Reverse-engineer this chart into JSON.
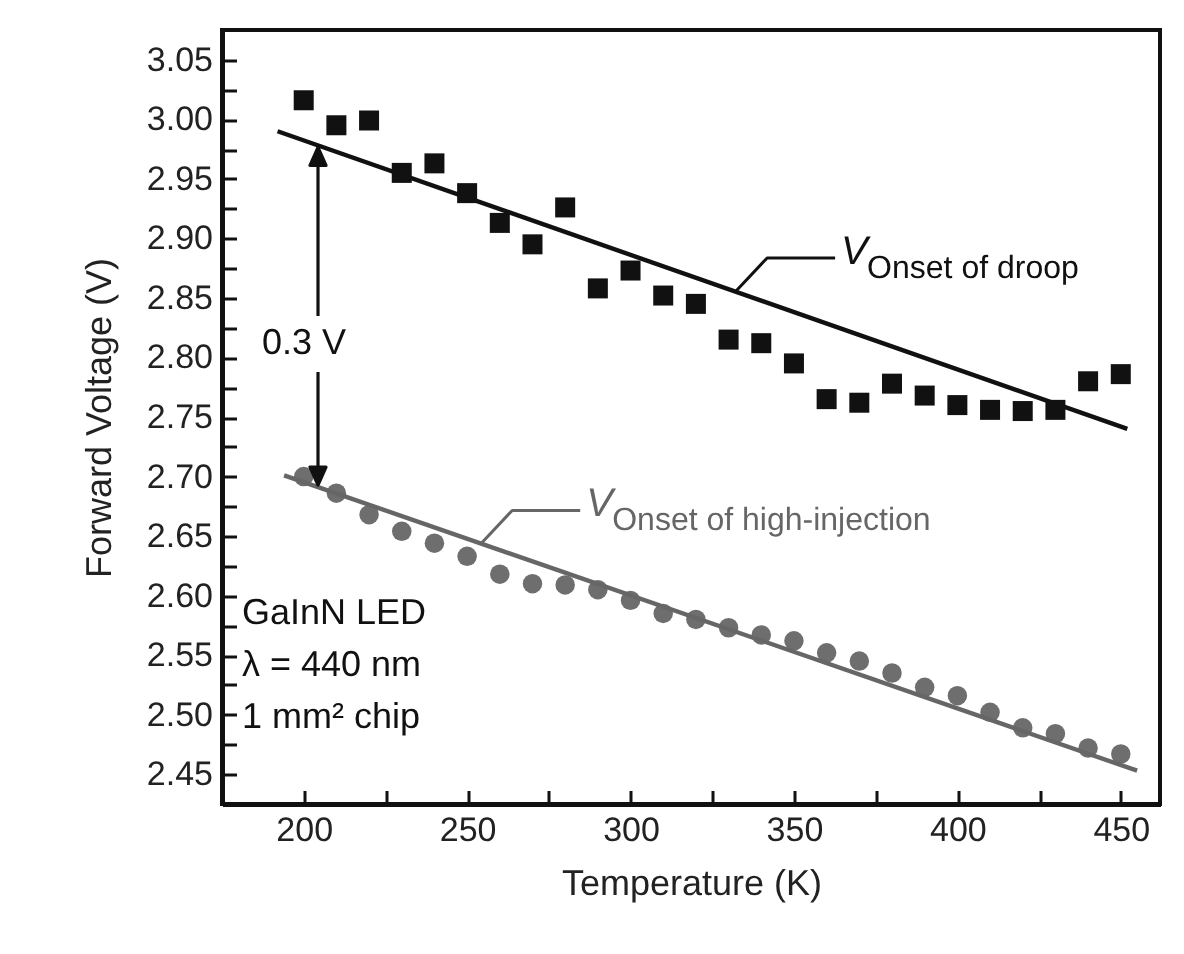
{
  "chart_data": {
    "type": "scatter",
    "xlabel": "Temperature   (K)",
    "ylabel": "Forward Voltage   (V)",
    "xlim": [
      175,
      462
    ],
    "ylim": [
      2.425,
      3.075
    ],
    "xticks": [
      200,
      {
        "value": 225,
        "label": null
      },
      250,
      {
        "value": 275,
        "label": null
      },
      300,
      {
        "value": 325,
        "label": null
      },
      350,
      {
        "value": 375,
        "label": null
      },
      400,
      {
        "value": 425,
        "label": null
      },
      450
    ],
    "yticks": [
      {
        "value": 2.45,
        "label": "2.45"
      },
      {
        "value": 2.475,
        "label": null
      },
      {
        "value": 2.5,
        "label": "2.50"
      },
      {
        "value": 2.525,
        "label": null
      },
      {
        "value": 2.55,
        "label": "2.55"
      },
      {
        "value": 2.575,
        "label": null
      },
      {
        "value": 2.6,
        "label": "2.60"
      },
      {
        "value": 2.625,
        "label": null
      },
      {
        "value": 2.65,
        "label": "2.65"
      },
      {
        "value": 2.675,
        "label": null
      },
      {
        "value": 2.7,
        "label": "2.70"
      },
      {
        "value": 2.725,
        "label": null
      },
      {
        "value": 2.75,
        "label": "2.75"
      },
      {
        "value": 2.775,
        "label": null
      },
      {
        "value": 2.8,
        "label": "2.80"
      },
      {
        "value": 2.825,
        "label": null
      },
      {
        "value": 2.85,
        "label": "2.85"
      },
      {
        "value": 2.875,
        "label": null
      },
      {
        "value": 2.9,
        "label": "2.90"
      },
      {
        "value": 2.925,
        "label": null
      },
      {
        "value": 2.95,
        "label": "2.95"
      },
      {
        "value": 2.975,
        "label": null
      },
      {
        "value": 3.0,
        "label": "3.00"
      },
      {
        "value": 3.025,
        "label": null
      },
      {
        "value": 3.05,
        "label": "3.05"
      }
    ],
    "x": [
      200,
      210,
      220,
      230,
      240,
      250,
      260,
      270,
      280,
      290,
      300,
      310,
      320,
      330,
      340,
      350,
      360,
      370,
      380,
      390,
      400,
      410,
      420,
      430,
      440,
      450
    ],
    "series": [
      {
        "marker": "square",
        "color": "#111111",
        "values": [
          3.016,
          2.995,
          2.999,
          2.955,
          2.963,
          2.938,
          2.913,
          2.895,
          2.926,
          2.858,
          2.873,
          2.852,
          2.845,
          2.815,
          2.812,
          2.795,
          2.765,
          2.762,
          2.778,
          2.768,
          2.76,
          2.756,
          2.755,
          2.756,
          2.78,
          2.786
        ]
      },
      {
        "marker": "circle",
        "color": "#6e6e6e",
        "values": [
          2.7,
          2.686,
          2.668,
          2.654,
          2.644,
          2.633,
          2.618,
          2.61,
          2.609,
          2.605,
          2.596,
          2.585,
          2.58,
          2.573,
          2.567,
          2.562,
          2.552,
          2.545,
          2.535,
          2.523,
          2.516,
          2.502,
          2.489,
          2.484,
          2.472,
          2.467
        ]
      },
      {
        "type": "line",
        "color": "#111111",
        "x": [
          192,
          452
        ],
        "values": [
          2.99,
          2.74
        ]
      },
      {
        "type": "line",
        "color": "#666666",
        "x": [
          194,
          455
        ],
        "values": [
          2.701,
          2.453
        ]
      }
    ],
    "annotations": [
      {
        "text": "V$_{Onset of droop}$",
        "x": 332,
        "y": 2.855
      },
      {
        "text": "V$_{Onset of high-injection}$",
        "x": 254,
        "y": 2.643
      },
      "0.3 V",
      "GaInN LED",
      "λ = 440 nm",
      "1 mm² chip"
    ],
    "grid": false
  }
}
